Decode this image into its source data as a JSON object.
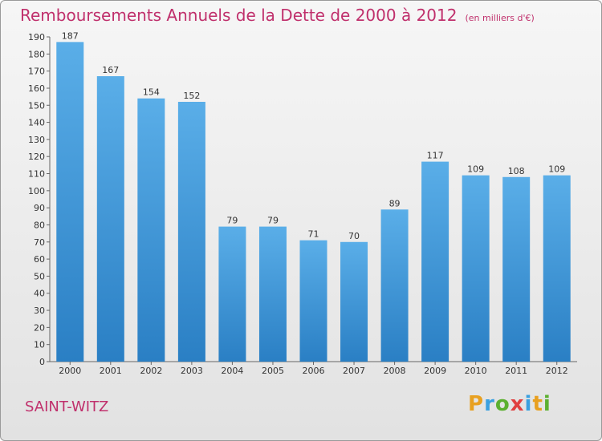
{
  "header": {
    "title": "Remboursements Annuels de la Dette de 2000 à 2012",
    "unit": "(en milliers d'€)"
  },
  "footer": {
    "city": "SAINT-WITZ",
    "logo": "Proxiti"
  },
  "colors": {
    "title": "#c0306c",
    "bar_top": "#5aaee8",
    "bar_bottom": "#2a7fc4"
  },
  "chart_data": {
    "type": "bar",
    "title": "Remboursements Annuels de la Dette de 2000 à 2012",
    "subtitle": "(en milliers d'€)",
    "categories": [
      "2000",
      "2001",
      "2002",
      "2003",
      "2004",
      "2005",
      "2006",
      "2007",
      "2008",
      "2009",
      "2010",
      "2011",
      "2012"
    ],
    "values": [
      187,
      167,
      154,
      152,
      79,
      79,
      71,
      70,
      89,
      117,
      109,
      108,
      109
    ],
    "ylim": [
      0,
      190
    ],
    "ytick_step": 10,
    "grid": false,
    "legend": "none"
  }
}
